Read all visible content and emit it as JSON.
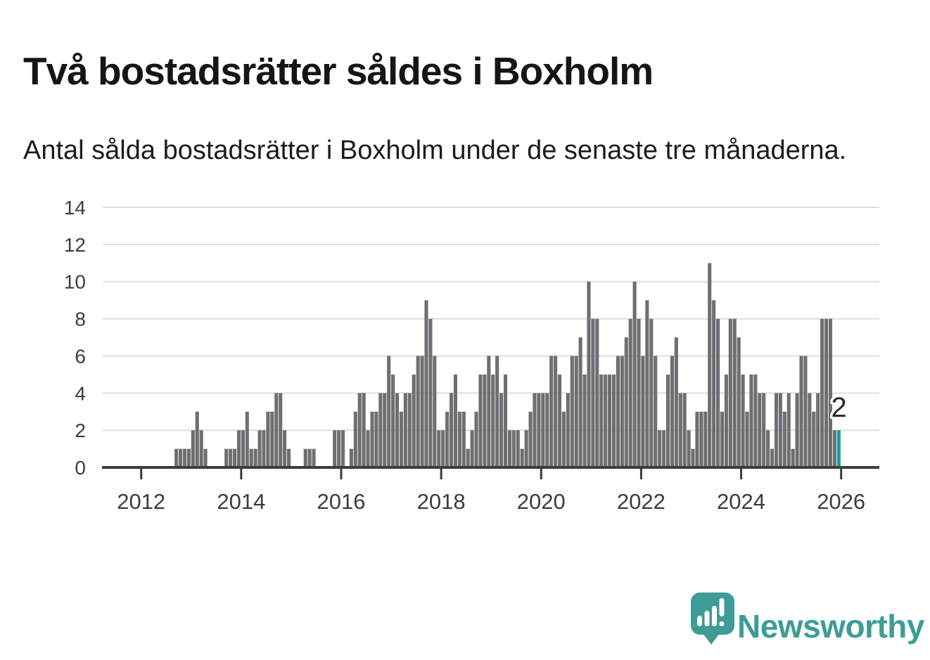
{
  "header": {
    "title": "Två bostadsrätter såldes i Boxholm",
    "subtitle": "Antal sålda bostadsrätter i Boxholm under de senaste tre månaderna."
  },
  "chart_data": {
    "type": "bar",
    "title": "Två bostadsrätter såldes i Boxholm",
    "subtitle": "Antal sålda bostadsrätter i Boxholm under de senaste tre månaderna.",
    "frequency": "monthly",
    "x_start": "2012-09",
    "x_end": "2025-12",
    "values": [
      1,
      1,
      1,
      1,
      2,
      3,
      2,
      1,
      0,
      0,
      0,
      0,
      1,
      1,
      1,
      2,
      2,
      3,
      1,
      1,
      2,
      2,
      3,
      3,
      4,
      4,
      2,
      1,
      0,
      0,
      0,
      1,
      1,
      1,
      0,
      0,
      0,
      0,
      2,
      2,
      2,
      0,
      1,
      3,
      4,
      4,
      2,
      3,
      3,
      4,
      4,
      6,
      5,
      4,
      3,
      4,
      4,
      5,
      6,
      6,
      9,
      8,
      6,
      2,
      2,
      3,
      4,
      5,
      3,
      3,
      1,
      2,
      3,
      5,
      5,
      6,
      5,
      6,
      4,
      5,
      2,
      2,
      2,
      1,
      2,
      3,
      4,
      4,
      4,
      4,
      6,
      6,
      5,
      3,
      4,
      6,
      6,
      7,
      5,
      10,
      8,
      8,
      5,
      5,
      5,
      5,
      6,
      6,
      7,
      8,
      10,
      8,
      6,
      9,
      8,
      6,
      2,
      2,
      5,
      6,
      7,
      4,
      4,
      2,
      1,
      3,
      3,
      3,
      11,
      9,
      8,
      3,
      5,
      8,
      8,
      7,
      5,
      3,
      5,
      5,
      4,
      4,
      2,
      1,
      4,
      4,
      3,
      4,
      1,
      4,
      6,
      6,
      4,
      3,
      4,
      8,
      8,
      8,
      2,
      2
    ],
    "last_value": 2,
    "annotation": {
      "label": "2",
      "applies_to": "last-bar"
    },
    "y_ticks": [
      0,
      2,
      4,
      6,
      8,
      10,
      12,
      14
    ],
    "x_ticks": [
      2012,
      2014,
      2016,
      2018,
      2020,
      2022,
      2024,
      2026
    ],
    "ylim": [
      0,
      14
    ],
    "xlabel": "",
    "ylabel": "",
    "grid": true,
    "legend": false,
    "colors": {
      "bar": "#6e6f73",
      "highlight": "#12a19b",
      "grid": "#dedede",
      "axis": "#3c3c3c",
      "tick_label": "#3c3c3c",
      "annotation_text": "#2b2b2e",
      "annotation_halo": "#ffffff"
    }
  },
  "footer": {
    "brand": "Newsworthy",
    "logo_icon": "speech-bubble-bar-chart-icon",
    "brand_color": "#3e9c98"
  }
}
